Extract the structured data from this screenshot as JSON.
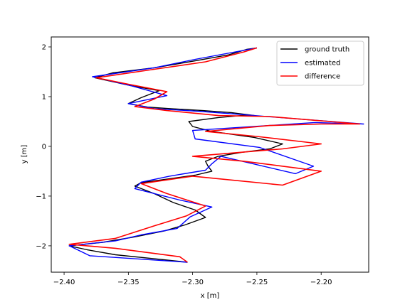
{
  "chart_data": {
    "type": "line",
    "title": "",
    "xlabel": "x [m]",
    "ylabel": "y [m]",
    "xlim": [
      -2.41,
      -2.163
    ],
    "ylim": [
      -2.53,
      2.2
    ],
    "xticks": [
      -2.4,
      -2.35,
      -2.3,
      -2.25,
      -2.2
    ],
    "xtick_labels": [
      "−2.40",
      "−2.35",
      "−2.30",
      "−2.25",
      "−2.20"
    ],
    "yticks": [
      -2,
      -1,
      0,
      1,
      2
    ],
    "ytick_labels": [
      "−2",
      "−1",
      "0",
      "1",
      "2"
    ],
    "grid": false,
    "legend_position": "upper right",
    "series": [
      {
        "name": "ground truth",
        "color": "#000000",
        "x": [
          -2.304,
          -2.33,
          -2.36,
          -2.382,
          -2.396,
          -2.37,
          -2.345,
          -2.322,
          -2.306,
          -2.29,
          -2.298,
          -2.315,
          -2.33,
          -2.345,
          -2.34,
          -2.32,
          -2.298,
          -2.285,
          -2.288,
          -2.29,
          -2.28,
          -2.262,
          -2.24,
          -2.23,
          -2.252,
          -2.285,
          -2.3,
          -2.303,
          -2.28,
          -2.262,
          -2.252,
          -2.27,
          -2.292,
          -2.318,
          -2.335,
          -2.35,
          -2.34,
          -2.326,
          -2.348,
          -2.376,
          -2.362,
          -2.33,
          -2.298,
          -2.272,
          -2.258,
          -2.25
        ],
        "y": [
          -2.33,
          -2.26,
          -2.18,
          -2.08,
          -2.0,
          -1.93,
          -1.82,
          -1.7,
          -1.58,
          -1.43,
          -1.28,
          -1.13,
          -0.95,
          -0.8,
          -0.73,
          -0.66,
          -0.58,
          -0.5,
          -0.4,
          -0.3,
          -0.2,
          -0.12,
          -0.05,
          0.05,
          0.18,
          0.3,
          0.4,
          0.5,
          0.58,
          0.62,
          0.62,
          0.68,
          0.72,
          0.76,
          0.79,
          0.86,
          0.98,
          1.12,
          1.22,
          1.38,
          1.48,
          1.58,
          1.72,
          1.84,
          1.95,
          1.98
        ]
      },
      {
        "name": "estimated",
        "color": "#0000ff",
        "x": [
          -2.304,
          -2.38,
          -2.396,
          -2.36,
          -2.34,
          -2.312,
          -2.302,
          -2.285,
          -2.31,
          -2.345,
          -2.34,
          -2.318,
          -2.29,
          -2.285,
          -2.278,
          -2.22,
          -2.206,
          -2.248,
          -2.298,
          -2.3,
          -2.205,
          -2.167,
          -2.252,
          -2.292,
          -2.33,
          -2.35,
          -2.32,
          -2.348,
          -2.378,
          -2.33,
          -2.298,
          -2.25
        ],
        "y": [
          -2.33,
          -2.2,
          -2.0,
          -1.9,
          -1.78,
          -1.65,
          -1.42,
          -1.22,
          -1.08,
          -0.85,
          -0.72,
          -0.6,
          -0.48,
          -0.35,
          -0.2,
          -0.55,
          -0.4,
          -0.02,
          0.15,
          0.32,
          0.48,
          0.45,
          0.62,
          0.7,
          0.76,
          0.86,
          1.02,
          1.22,
          1.4,
          1.58,
          1.75,
          1.98
        ]
      },
      {
        "name": "difference",
        "color": "#ff0000",
        "x": [
          -2.304,
          -2.31,
          -2.36,
          -2.396,
          -2.36,
          -2.33,
          -2.305,
          -2.29,
          -2.32,
          -2.34,
          -2.3,
          -2.23,
          -2.2,
          -2.26,
          -2.3,
          -2.23,
          -2.2,
          -2.25,
          -2.29,
          -2.24,
          -2.2,
          -2.17,
          -2.24,
          -2.28,
          -2.32,
          -2.345,
          -2.33,
          -2.32,
          -2.35,
          -2.375,
          -2.33,
          -2.29,
          -2.26,
          -2.25
        ],
        "y": [
          -2.33,
          -2.22,
          -2.05,
          -1.97,
          -1.85,
          -1.6,
          -1.4,
          -1.2,
          -0.95,
          -0.75,
          -0.6,
          -0.78,
          -0.5,
          -0.3,
          -0.2,
          -0.05,
          0.05,
          0.2,
          0.3,
          0.42,
          0.45,
          0.45,
          0.6,
          0.62,
          0.72,
          0.8,
          0.95,
          1.1,
          1.25,
          1.38,
          1.55,
          1.7,
          1.9,
          1.98
        ]
      }
    ]
  }
}
